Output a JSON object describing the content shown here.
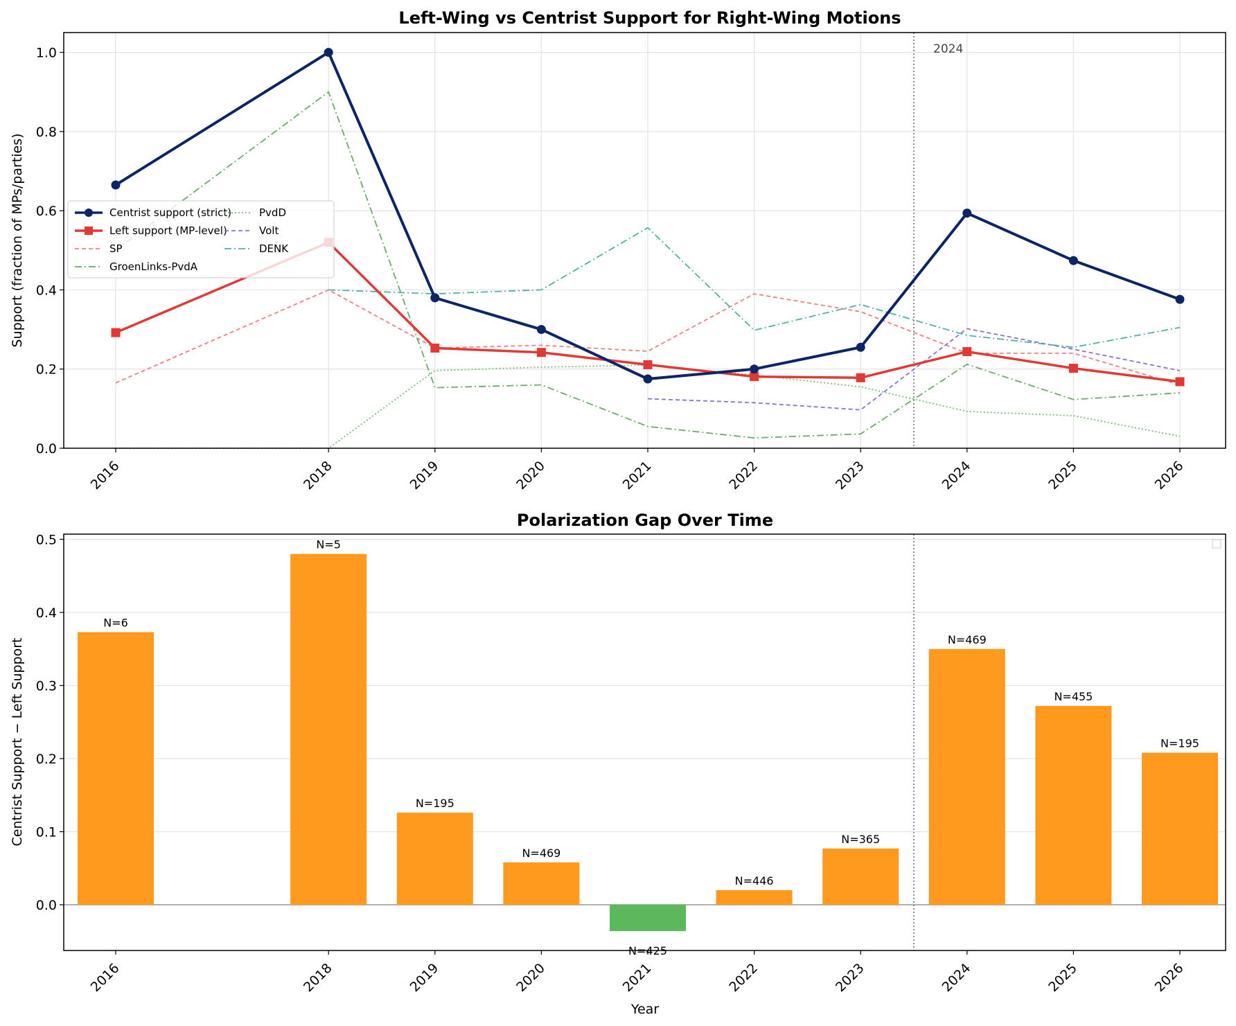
{
  "chart_data": [
    {
      "type": "line",
      "title": "Left-Wing vs Centrist Support for Right-Wing Motions",
      "xlabel": "",
      "ylabel": "Support (fraction of MPs/parties)",
      "x": [
        2016,
        2018,
        2019,
        2020,
        2021,
        2022,
        2023,
        2024,
        2025,
        2026
      ],
      "ylim": [
        0,
        1.05
      ],
      "yticks": [
        "0.0",
        "0.2",
        "0.4",
        "0.6",
        "0.8",
        "1.0"
      ],
      "grid": true,
      "legend": "center-left",
      "vline": {
        "x": 2023.5,
        "label": "2024"
      },
      "series": [
        {
          "name": "Centrist support (strict)",
          "color": "#0d2466",
          "values": [
            0.665,
            1.0,
            0.38,
            0.3,
            0.175,
            0.2,
            0.255,
            0.594,
            0.474,
            0.376
          ]
        },
        {
          "name": "Left support (MP-level)",
          "color": "#e03a35",
          "values": [
            0.292,
            0.52,
            0.253,
            0.242,
            0.211,
            0.181,
            0.178,
            0.244,
            0.202,
            0.168
          ]
        },
        {
          "name": "SP",
          "color": "#f08080",
          "values": [
            0.165,
            0.4,
            0.253,
            0.26,
            0.245,
            0.39,
            0.345,
            0.24,
            0.24,
            0.16
          ]
        },
        {
          "name": "GroenLinks-PvdA",
          "color": "#6aaa6a",
          "values": [
            0.5,
            0.9,
            0.153,
            0.16,
            0.055,
            0.026,
            0.036,
            0.212,
            0.123,
            0.14
          ]
        },
        {
          "name": "PvdD",
          "color": "#77bb77",
          "values": [
            0.0,
            0.0,
            0.196,
            0.205,
            0.21,
            0.185,
            0.155,
            0.093,
            0.082,
            0.03
          ]
        },
        {
          "name": "Volt",
          "color": "#8c70d0",
          "values": [
            null,
            null,
            null,
            null,
            0.125,
            0.115,
            0.097,
            0.302,
            0.25,
            0.196
          ]
        },
        {
          "name": "DENK",
          "color": "#4fb0a8",
          "values": [
            null,
            0.4,
            0.39,
            0.4,
            0.557,
            0.298,
            0.363,
            0.285,
            0.255,
            0.305
          ]
        }
      ]
    },
    {
      "type": "bar",
      "title": "Polarization Gap Over Time",
      "xlabel": "Year",
      "ylabel": "Centrist Support − Left Support",
      "categories": [
        "2016",
        "2018",
        "2019",
        "2020",
        "2021",
        "2022",
        "2023",
        "2024",
        "2025",
        "2026"
      ],
      "x": [
        2016,
        2018,
        2019,
        2020,
        2021,
        2022,
        2023,
        2024,
        2025,
        2026
      ],
      "values": [
        0.373,
        0.48,
        0.126,
        0.058,
        -0.036,
        0.02,
        0.077,
        0.35,
        0.272,
        0.208
      ],
      "labels": [
        "N=6",
        "N=5",
        "N=195",
        "N=469",
        "N=425",
        "N=446",
        "N=365",
        "N=469",
        "N=455",
        "N=195"
      ],
      "ylim": [
        -0.065,
        0.505
      ],
      "yticks": [
        "0.0",
        "0.1",
        "0.2",
        "0.3",
        "0.4",
        "0.5"
      ],
      "grid": true,
      "colors": {
        "positive": "#ff9a1f",
        "negative": "#5cb85c"
      },
      "vline": {
        "x": 2023.5
      }
    }
  ]
}
